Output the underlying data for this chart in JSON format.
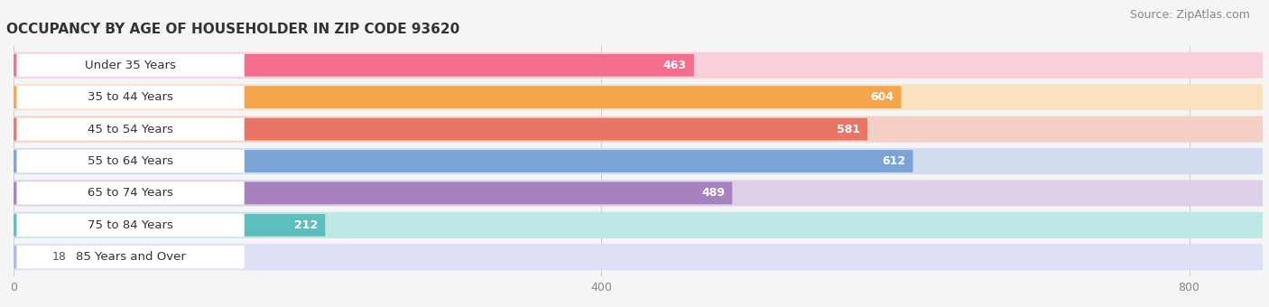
{
  "title": "OCCUPANCY BY AGE OF HOUSEHOLDER IN ZIP CODE 93620",
  "source": "Source: ZipAtlas.com",
  "categories": [
    "Under 35 Years",
    "35 to 44 Years",
    "45 to 54 Years",
    "55 to 64 Years",
    "65 to 74 Years",
    "75 to 84 Years",
    "85 Years and Over"
  ],
  "values": [
    463,
    604,
    581,
    612,
    489,
    212,
    18
  ],
  "bar_colors": [
    "#F46F8E",
    "#F5A64A",
    "#E87565",
    "#7BA3D4",
    "#A882BE",
    "#5CBFBE",
    "#AEBAE8"
  ],
  "bar_bg_colors": [
    "#F9D0DA",
    "#FAE2C0",
    "#F5CEC5",
    "#D2DCEE",
    "#DDD0E8",
    "#BEE8E5",
    "#DDDFF5"
  ],
  "xlim_data": 850,
  "xticks": [
    0,
    400,
    800
  ],
  "title_fontsize": 11,
  "source_fontsize": 9,
  "label_fontsize": 9.5,
  "value_fontsize": 9,
  "background_color": "#f5f5f5",
  "label_pill_color": "#ffffff"
}
